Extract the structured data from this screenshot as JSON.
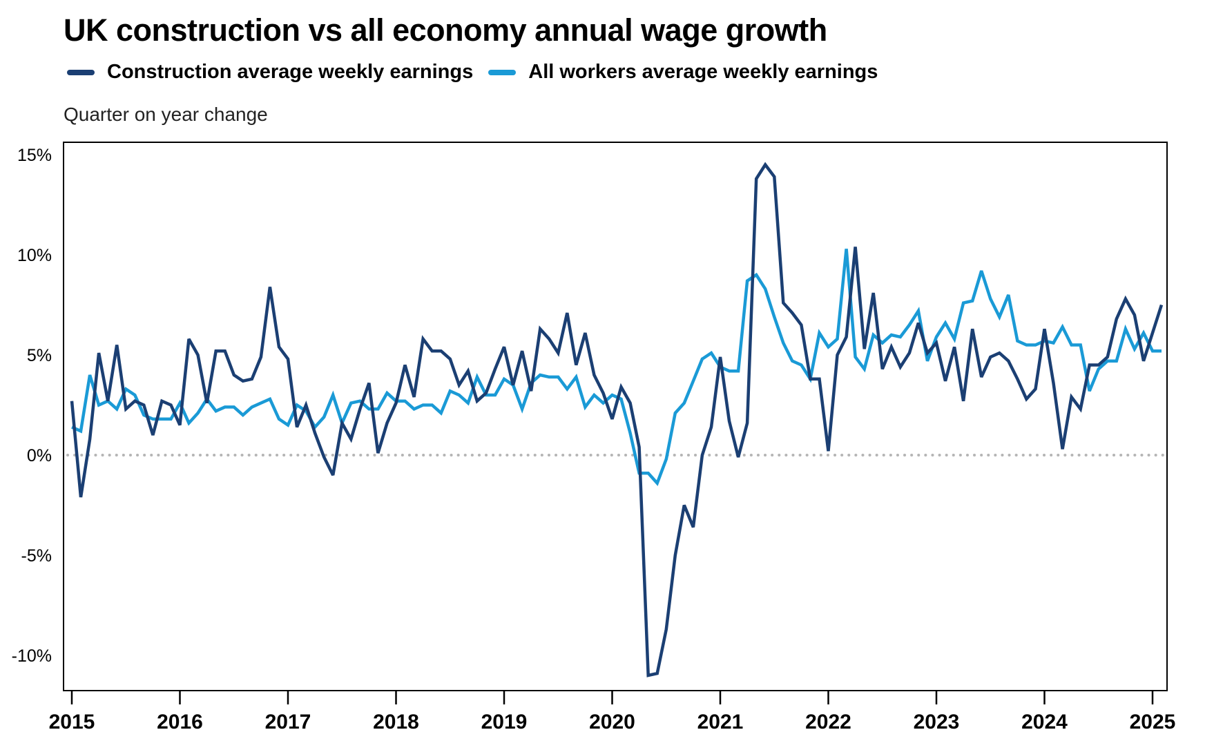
{
  "chart_data": {
    "type": "line",
    "title": "UK construction vs all economy annual wage growth",
    "subtitle": "Quarter on year change",
    "xlabel": "",
    "ylabel": "Quarter on year change",
    "x_start": "2015-01",
    "x_end": "2025-02",
    "x_frequency": "monthly",
    "x_ticks": [
      "2015",
      "2016",
      "2017",
      "2018",
      "2019",
      "2020",
      "2021",
      "2022",
      "2023",
      "2024",
      "2025"
    ],
    "y_ticks": [
      "15%",
      "10%",
      "5%",
      "0%",
      "-5%",
      "-10%"
    ],
    "y_tick_values": [
      15,
      10,
      5,
      0,
      -5,
      -10
    ],
    "ylim": [
      -11.8,
      16.2
    ],
    "reference_line": 0,
    "grid": false,
    "legend_position": "top-left",
    "series": [
      {
        "name": "Construction average weekly earnings",
        "color": "#1b3f73",
        "values": [
          2.7,
          -2.1,
          0.8,
          5.1,
          2.7,
          5.5,
          2.3,
          2.7,
          2.5,
          1.0,
          2.7,
          2.5,
          1.5,
          5.8,
          5.0,
          2.6,
          5.2,
          5.2,
          4.0,
          3.7,
          3.8,
          4.9,
          8.4,
          5.4,
          4.8,
          1.4,
          2.5,
          1.1,
          -0.1,
          -1.0,
          1.6,
          0.8,
          2.3,
          3.6,
          0.1,
          1.6,
          2.6,
          4.5,
          2.9,
          5.8,
          5.2,
          5.2,
          4.8,
          3.5,
          4.2,
          2.7,
          3.1,
          4.3,
          5.4,
          3.5,
          5.2,
          3.2,
          6.3,
          5.8,
          5.1,
          7.1,
          4.5,
          6.1,
          4.0,
          3.1,
          1.8,
          3.4,
          2.6,
          0.4,
          -11.0,
          -10.9,
          -8.7,
          -5.0,
          -2.5,
          -3.6,
          0.0,
          1.4,
          4.9,
          1.7,
          -0.1,
          1.6,
          13.8,
          14.5,
          13.9,
          7.6,
          7.1,
          6.5,
          3.8,
          3.8,
          0.2,
          5.0,
          5.9,
          10.4,
          5.3,
          8.1,
          4.3,
          5.4,
          4.4,
          5.1,
          6.6,
          5.1,
          5.6,
          3.7,
          5.4,
          2.7,
          6.3,
          3.9,
          4.9,
          5.1,
          4.7,
          3.8,
          2.8,
          3.3,
          6.3,
          3.6,
          0.3,
          2.9,
          2.3,
          4.5,
          4.5,
          4.9,
          6.8,
          7.8,
          7.0,
          4.7,
          6.1,
          7.5
        ]
      },
      {
        "name": "All workers average weekly earnings",
        "color": "#1a9ad6",
        "values": [
          1.4,
          1.2,
          4.0,
          2.5,
          2.7,
          2.3,
          3.3,
          3.0,
          2.0,
          1.8,
          1.8,
          1.8,
          2.6,
          1.6,
          2.1,
          2.8,
          2.2,
          2.4,
          2.4,
          2.0,
          2.4,
          2.6,
          2.8,
          1.8,
          1.5,
          2.5,
          2.2,
          1.4,
          1.9,
          3.0,
          1.6,
          2.6,
          2.7,
          2.3,
          2.3,
          3.1,
          2.7,
          2.7,
          2.3,
          2.5,
          2.5,
          2.1,
          3.2,
          3.0,
          2.6,
          3.9,
          3.0,
          3.0,
          3.8,
          3.5,
          2.3,
          3.6,
          4.0,
          3.9,
          3.9,
          3.3,
          3.9,
          2.4,
          3.0,
          2.6,
          3.0,
          2.8,
          1.1,
          -0.9,
          -0.9,
          -1.4,
          -0.2,
          2.1,
          2.6,
          3.7,
          4.8,
          5.1,
          4.4,
          4.2,
          4.2,
          8.7,
          9.0,
          8.3,
          6.9,
          5.6,
          4.7,
          4.5,
          3.8,
          6.1,
          5.4,
          5.8,
          10.3,
          4.9,
          4.3,
          6.0,
          5.6,
          6.0,
          5.9,
          6.5,
          7.2,
          4.7,
          5.9,
          6.6,
          5.8,
          7.6,
          7.7,
          9.2,
          7.8,
          6.9,
          8.0,
          5.7,
          5.5,
          5.5,
          5.7,
          5.6,
          6.4,
          5.5,
          5.5,
          3.2,
          4.3,
          4.7,
          4.7,
          6.3,
          5.3,
          6.1,
          5.2,
          5.2
        ]
      }
    ]
  }
}
